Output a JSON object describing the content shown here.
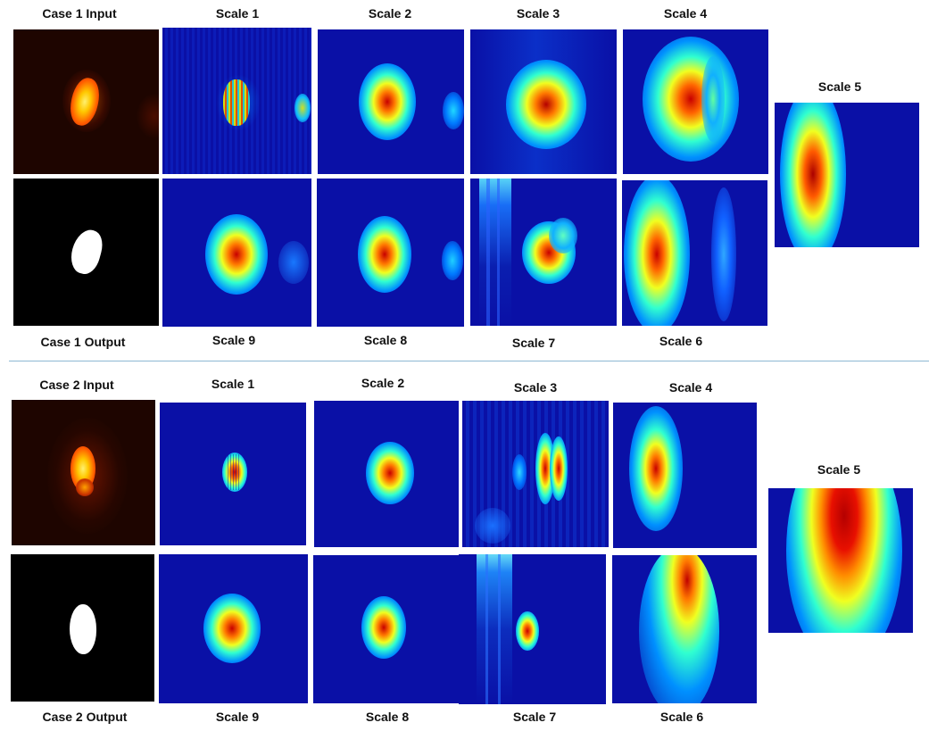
{
  "case1": {
    "input_label": "Case 1 Input",
    "output_label": "Case 1 Output",
    "top_row_labels": [
      "Scale 1",
      "Scale 2",
      "Scale 3",
      "Scale 4"
    ],
    "bottom_row_labels": [
      "Scale 9",
      "Scale 8",
      "Scale 7",
      "Scale 6"
    ],
    "scale5_label": "Scale 5"
  },
  "case2": {
    "input_label": "Case 2 Input",
    "output_label": "Case 2 Output",
    "top_row_labels": [
      "Scale 1",
      "Scale 2",
      "Scale 3",
      "Scale 4"
    ],
    "bottom_row_labels": [
      "Scale 9",
      "Scale 8",
      "Scale 7",
      "Scale 6"
    ],
    "scale5_label": "Scale 5"
  },
  "colors": {
    "heatmap_background": "#0a10a6",
    "input_background": "#1e0500",
    "mask_background": "#000000",
    "mask_foreground": "#ffffff",
    "separator": "#8db8d3"
  },
  "colormaps": {
    "input_image": "hot",
    "feature_maps": "jet"
  }
}
